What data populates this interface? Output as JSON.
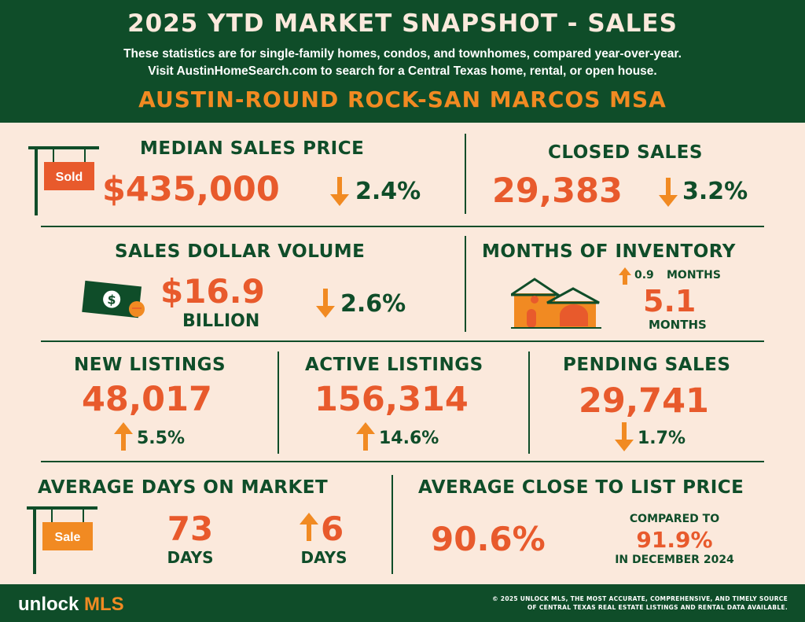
{
  "header": {
    "title": "2025 YTD MARKET SNAPSHOT - SALES",
    "subtitle_1": "These statistics are for single-family homes, condos, and townhomes, compared year-over-year.",
    "subtitle_2": "Visit AustinHomeSearch.com to search for a Central Texas home, rental, or open house.",
    "region": "AUSTIN-ROUND ROCK-SAN MARCOS MSA"
  },
  "median_sales_price": {
    "label": "MEDIAN SALES PRICE",
    "value": "$435,000",
    "change": "2.4%",
    "direction": "down",
    "sign_text": "Sold"
  },
  "closed_sales": {
    "label": "CLOSED SALES",
    "value": "29,383",
    "change": "3.2%",
    "direction": "down"
  },
  "sales_dollar_volume": {
    "label": "SALES DOLLAR VOLUME",
    "value": "$16.9",
    "unit": "BILLION",
    "change": "2.6%",
    "direction": "down",
    "bill_symbol": "$"
  },
  "months_of_inventory": {
    "label": "MONTHS OF INVENTORY",
    "change_value": "0.9",
    "change_unit": "MONTHS",
    "direction": "up",
    "value": "5.1",
    "unit": "MONTHS"
  },
  "new_listings": {
    "label": "NEW LISTINGS",
    "value": "48,017",
    "change": "5.5%",
    "direction": "up"
  },
  "active_listings": {
    "label": "ACTIVE LISTINGS",
    "value": "156,314",
    "change": "14.6%",
    "direction": "up"
  },
  "pending_sales": {
    "label": "PENDING SALES",
    "value": "29,741",
    "change": "1.7%",
    "direction": "down"
  },
  "average_days_on_market": {
    "label": "AVERAGE DAYS ON MARKET",
    "value": "73",
    "unit": "DAYS",
    "change": "6",
    "change_unit": "DAYS",
    "direction": "up",
    "sign_text": "Sale"
  },
  "average_close_to_list": {
    "label": "AVERAGE CLOSE TO LIST PRICE",
    "value": "90.6%",
    "compared_label": "COMPARED TO",
    "compared_value": "91.9%",
    "compared_period": "IN DECEMBER 2024"
  },
  "footer": {
    "logo_word": "unlock",
    "logo_mls": "MLS",
    "copyright_1": "© 2025 UNLOCK MLS, THE MOST ACCURATE, COMPREHENSIVE, AND TIMELY SOURCE",
    "copyright_2": "OF CENTRAL TEXAS REAL ESTATE LISTINGS AND RENTAL DATA AVAILABLE."
  },
  "colors": {
    "green": "#0f4d29",
    "orange": "#f18a22",
    "red_orange": "#e85a2c",
    "background": "#fbe9dc"
  },
  "icons": [
    "sold-sign-icon",
    "money-bill-icon",
    "house-icon",
    "sale-sign-icon",
    "arrow-up-icon",
    "arrow-down-icon"
  ]
}
